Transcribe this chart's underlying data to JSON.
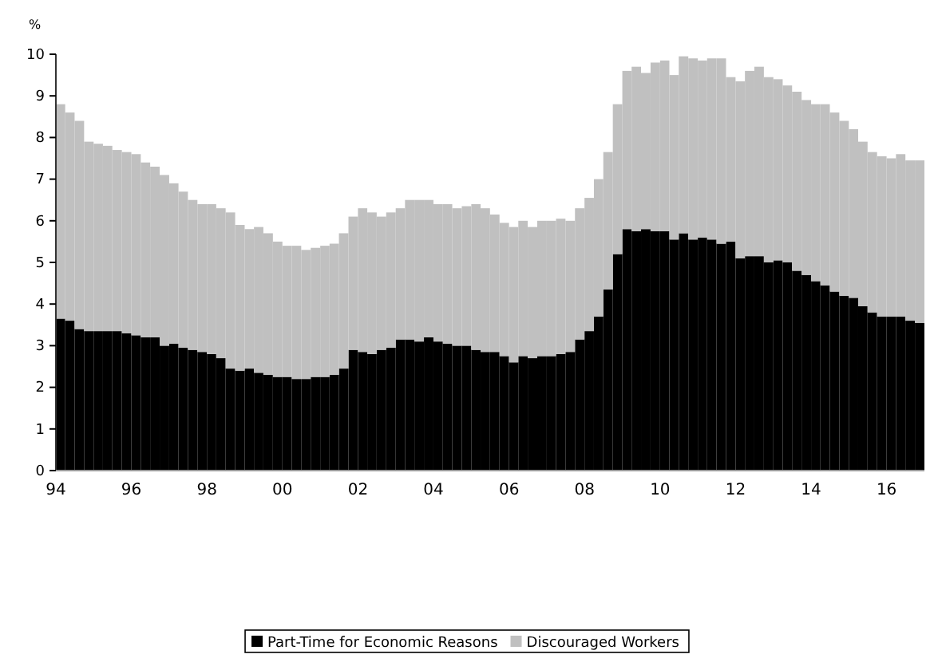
{
  "chart_data": {
    "type": "bar",
    "stacked": true,
    "ylabel": "%",
    "legend": "bottom",
    "x": [
      "1994-01",
      "1994-04",
      "1994-07",
      "1994-10",
      "1995-01",
      "1995-04",
      "1995-07",
      "1995-10",
      "1996-01",
      "1996-04",
      "1996-07",
      "1996-10",
      "1997-01",
      "1997-04",
      "1997-07",
      "1997-10",
      "1998-01",
      "1998-04",
      "1998-07",
      "1998-10",
      "1999-01",
      "1999-04",
      "1999-07",
      "1999-10",
      "2000-01",
      "2000-04",
      "2000-07",
      "2000-10",
      "2001-01",
      "2001-04",
      "2001-07",
      "2001-10",
      "2002-01",
      "2002-04",
      "2002-07",
      "2002-10",
      "2003-01",
      "2003-04",
      "2003-07",
      "2003-10",
      "2004-01",
      "2004-04",
      "2004-07",
      "2004-10",
      "2005-01",
      "2005-04",
      "2005-07",
      "2005-10",
      "2006-01",
      "2006-04",
      "2006-07",
      "2006-10",
      "2007-01",
      "2007-04",
      "2007-07",
      "2007-10",
      "2008-01",
      "2008-04",
      "2008-07",
      "2008-10",
      "2009-01",
      "2009-04",
      "2009-07",
      "2009-10",
      "2010-01",
      "2010-04",
      "2010-07",
      "2010-10",
      "2011-01",
      "2011-04",
      "2011-07",
      "2011-10",
      "2012-01",
      "2012-04",
      "2012-07",
      "2012-10",
      "2013-01",
      "2013-04",
      "2013-07",
      "2013-10",
      "2014-01",
      "2014-04",
      "2014-07",
      "2014-10",
      "2015-01",
      "2015-04",
      "2015-07",
      "2015-10",
      "2016-01",
      "2016-04",
      "2016-07",
      "2016-10"
    ],
    "series": [
      {
        "name": "Part-Time for Economic Reasons",
        "color": "#000000",
        "values": [
          3.65,
          3.6,
          3.4,
          3.35,
          3.35,
          3.35,
          3.35,
          3.3,
          3.25,
          3.2,
          3.2,
          3.0,
          3.05,
          2.95,
          2.9,
          2.85,
          2.8,
          2.7,
          2.45,
          2.4,
          2.45,
          2.35,
          2.3,
          2.25,
          2.25,
          2.2,
          2.2,
          2.25,
          2.25,
          2.3,
          2.45,
          2.9,
          2.85,
          2.8,
          2.9,
          2.95,
          3.15,
          3.15,
          3.1,
          3.2,
          3.1,
          3.05,
          3.0,
          3.0,
          2.9,
          2.85,
          2.85,
          2.75,
          2.6,
          2.75,
          2.7,
          2.75,
          2.75,
          2.8,
          2.85,
          3.15,
          3.35,
          3.7,
          4.35,
          5.2,
          5.8,
          5.75,
          5.8,
          5.75,
          5.75,
          5.55,
          5.7,
          5.55,
          5.6,
          5.55,
          5.45,
          5.5,
          5.1,
          5.15,
          5.15,
          5.0,
          5.05,
          5.0,
          4.8,
          4.7,
          4.55,
          4.45,
          4.3,
          4.2,
          4.15,
          3.95,
          3.8,
          3.7,
          3.7,
          3.7,
          3.6,
          3.55
        ]
      },
      {
        "name": "Discouraged Workers",
        "color": "#c0c0c0",
        "values": [
          5.15,
          5.0,
          5.0,
          4.55,
          4.5,
          4.45,
          4.35,
          4.35,
          4.35,
          4.2,
          4.1,
          4.1,
          3.85,
          3.75,
          3.6,
          3.55,
          3.6,
          3.6,
          3.75,
          3.5,
          3.35,
          3.5,
          3.4,
          3.25,
          3.15,
          3.2,
          3.1,
          3.1,
          3.15,
          3.15,
          3.25,
          3.2,
          3.45,
          3.4,
          3.2,
          3.25,
          3.15,
          3.35,
          3.4,
          3.3,
          3.3,
          3.35,
          3.3,
          3.35,
          3.5,
          3.45,
          3.3,
          3.2,
          3.25,
          3.25,
          3.15,
          3.25,
          3.25,
          3.25,
          3.15,
          3.15,
          3.2,
          3.3,
          3.3,
          3.6,
          3.8,
          3.95,
          3.75,
          4.05,
          4.1,
          3.95,
          4.25,
          4.35,
          4.25,
          4.35,
          4.45,
          3.95,
          4.25,
          4.45,
          4.55,
          4.45,
          4.35,
          4.25,
          4.3,
          4.2,
          4.25,
          4.35,
          4.3,
          4.2,
          4.05,
          3.95,
          3.85,
          3.85,
          3.8,
          3.9,
          3.85,
          3.9
        ]
      }
    ],
    "xlim": [
      "1994-01",
      "2017-01"
    ],
    "xticks": [
      {
        "value": "1994-01",
        "label": "94"
      },
      {
        "value": "1996-01",
        "label": "96"
      },
      {
        "value": "1998-01",
        "label": "98"
      },
      {
        "value": "2000-01",
        "label": "00"
      },
      {
        "value": "2002-01",
        "label": "02"
      },
      {
        "value": "2004-01",
        "label": "04"
      },
      {
        "value": "2006-01",
        "label": "06"
      },
      {
        "value": "2008-01",
        "label": "08"
      },
      {
        "value": "2010-01",
        "label": "10"
      },
      {
        "value": "2012-01",
        "label": "12"
      },
      {
        "value": "2014-01",
        "label": "14"
      },
      {
        "value": "2016-01",
        "label": "16"
      }
    ],
    "ylim": [
      0,
      10
    ],
    "yticks": [
      0,
      1,
      2,
      3,
      4,
      5,
      6,
      7,
      8,
      9,
      10
    ]
  }
}
